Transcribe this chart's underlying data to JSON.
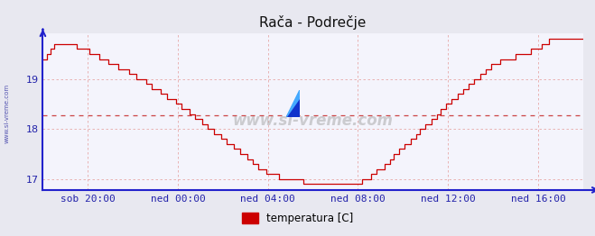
{
  "title": "Rača - Podrečje",
  "background_color": "#e8e8f0",
  "plot_bg_color": "#f4f4fc",
  "grid_color_v": "#e8a8a8",
  "grid_color_h": "#e8a8a8",
  "avg_line_color": "#cc4444",
  "line_color": "#cc0000",
  "axis_color": "#2222cc",
  "text_color": "#2222aa",
  "ylim": [
    16.78,
    19.92
  ],
  "yticks": [
    17,
    18,
    19
  ],
  "xlim_start": 0,
  "xlim_end": 288,
  "xtick_positions": [
    24,
    72,
    120,
    168,
    216,
    264
  ],
  "xtick_labels": [
    "sob 20:00",
    "ned 00:00",
    "ned 04:00",
    "ned 08:00",
    "ned 12:00",
    "ned 16:00"
  ],
  "avg_line_y": 18.28,
  "legend_label": "temperatura [C]",
  "legend_color": "#cc0000",
  "watermark": "www.si-vreme.com",
  "title_fontsize": 11,
  "tick_fontsize": 8
}
